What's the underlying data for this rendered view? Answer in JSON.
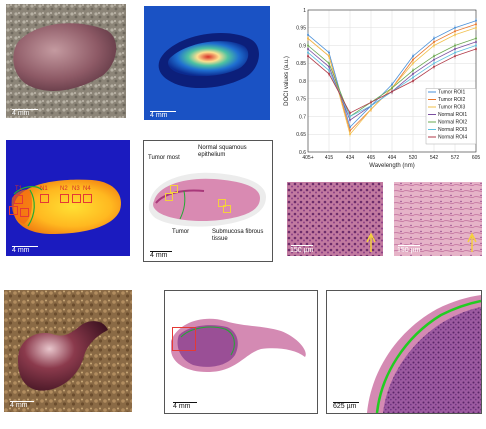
{
  "panels": {
    "tissue_photo": {
      "scale": "4 mm"
    },
    "doci_heatmap": {
      "scale": "4 mm"
    },
    "roi_map": {
      "scale": "4 mm",
      "rois": [
        "T1",
        "N1",
        "N2",
        "N3",
        "N4"
      ]
    },
    "he_section": {
      "scale": "4 mm",
      "labels": {
        "tumor_most": "Tumor most",
        "normal_squamous": "Normal squamous epithelium",
        "tumor": "Tumor",
        "submucosa": "Submucosa fibrous tissue"
      }
    },
    "micro_tumor": {
      "scale": "150 µm"
    },
    "micro_normal": {
      "scale": "150 µm"
    },
    "bottom_photo": {
      "scale": "4 mm"
    },
    "bottom_section": {
      "scale": "4 mm"
    },
    "bottom_zoom": {
      "scale": "625 µm"
    }
  },
  "colors": {
    "tumor_outline": "#22aa33",
    "roi_box": "#e53935",
    "arrow": "#f4d03f"
  },
  "chart_data": {
    "type": "line",
    "xlabel": "Wavelength (nm)",
    "ylabel": "DOCI values (a.u.)",
    "x": [
      "405+",
      "415",
      "434",
      "465",
      "494",
      "520",
      "542",
      "572",
      "605"
    ],
    "ylim": [
      0.6,
      1.0
    ],
    "yticks": [
      0.6,
      0.65,
      0.7,
      0.75,
      0.8,
      0.85,
      0.9,
      0.95,
      1.0
    ],
    "legend_position": "bottom-right",
    "series": [
      {
        "name": "Tumor ROI1",
        "color": "#4a90d9",
        "values": [
          0.93,
          0.88,
          0.67,
          0.73,
          0.79,
          0.87,
          0.92,
          0.95,
          0.97
        ]
      },
      {
        "name": "Tumor ROI2",
        "color": "#e8772e",
        "values": [
          0.92,
          0.87,
          0.66,
          0.72,
          0.78,
          0.86,
          0.91,
          0.94,
          0.96
        ]
      },
      {
        "name": "Tumor ROI3",
        "color": "#f2c14e",
        "values": [
          0.92,
          0.87,
          0.65,
          0.72,
          0.78,
          0.85,
          0.9,
          0.93,
          0.95
        ]
      },
      {
        "name": "Normal ROI1",
        "color": "#7b4fa0",
        "values": [
          0.89,
          0.84,
          0.69,
          0.73,
          0.77,
          0.82,
          0.86,
          0.89,
          0.91
        ]
      },
      {
        "name": "Normal ROI2",
        "color": "#6aa84f",
        "values": [
          0.9,
          0.85,
          0.7,
          0.74,
          0.78,
          0.83,
          0.87,
          0.9,
          0.92
        ]
      },
      {
        "name": "Normal ROI3",
        "color": "#5bc0de",
        "values": [
          0.88,
          0.83,
          0.7,
          0.73,
          0.77,
          0.81,
          0.85,
          0.88,
          0.9
        ]
      },
      {
        "name": "Normal ROI4",
        "color": "#b03a48",
        "values": [
          0.87,
          0.82,
          0.71,
          0.74,
          0.77,
          0.8,
          0.84,
          0.87,
          0.89
        ]
      }
    ]
  }
}
